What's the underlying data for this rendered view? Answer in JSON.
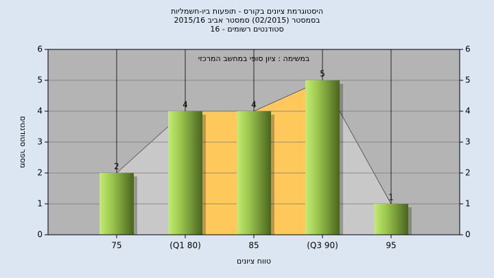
{
  "chart_data": {
    "type": "bar",
    "title": [
      "היסטוגרמת ציונים בקורס - תופעות ביו-חשמליות",
      "בסמסטר  (02/2015)  סמסטר אביב 2015/16",
      "סטודנטים רשומים - 16"
    ],
    "subtitle": "במשימה : ציון סופי במחשב המרכזי",
    "x_label": "טווח ציונים",
    "y_label": "מספר סטודנטים",
    "categories": [
      "75",
      "(Q1 80)",
      "85",
      "(Q3 90)",
      "95"
    ],
    "values": [
      2,
      4,
      4,
      5,
      1
    ],
    "ylim": [
      0,
      6
    ],
    "yticks": [
      0,
      1,
      2,
      3,
      4,
      5,
      6
    ],
    "y2lim": [
      0,
      6
    ],
    "y2ticks": [
      0,
      1,
      2,
      3,
      4,
      5,
      6
    ],
    "grid": true
  }
}
